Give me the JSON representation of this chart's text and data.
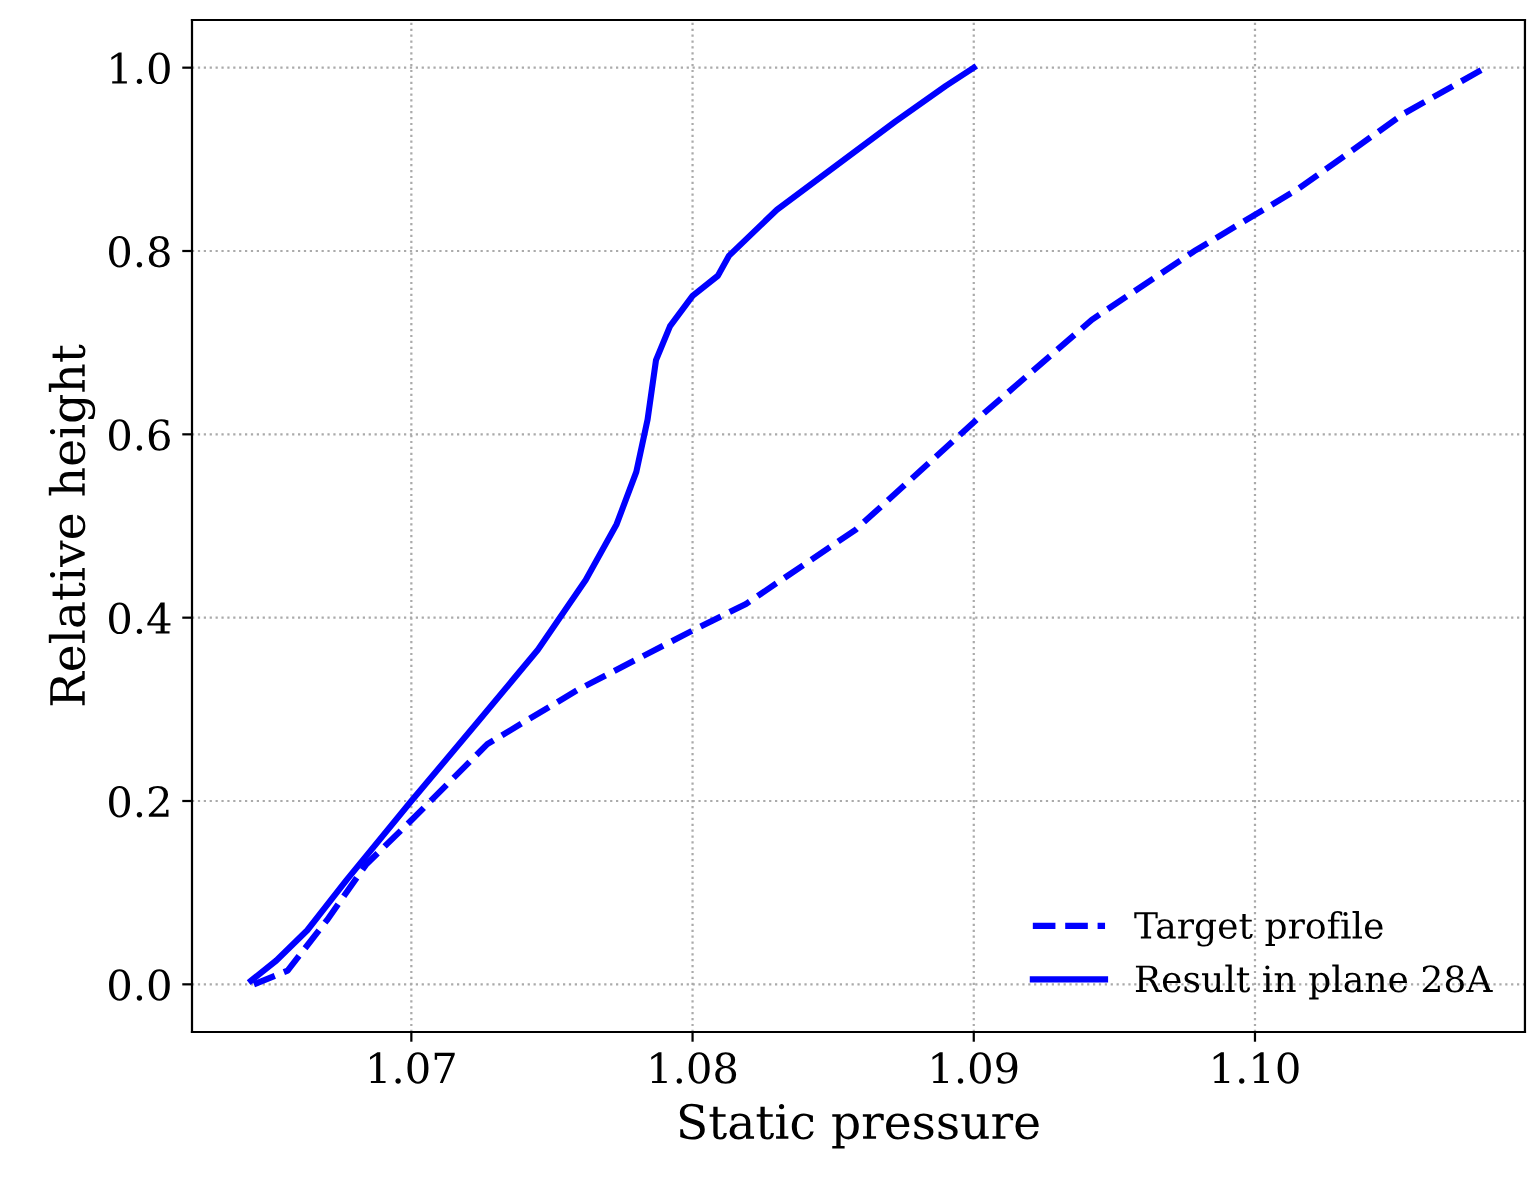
{
  "chart_data": {
    "type": "line",
    "xlabel": "Static pressure",
    "ylabel": "Relative height",
    "xlim": [
      1.0622,
      1.1096
    ],
    "ylim": [
      -0.052,
      1.052
    ],
    "xticks": [
      1.07,
      1.08,
      1.09,
      {
        "value": 1.1,
        "label": "1.10"
      }
    ],
    "yticks": [
      {
        "value": 0,
        "label": "0.0"
      },
      0.2,
      0.4,
      0.6,
      0.8,
      {
        "value": 1,
        "label": "1.0"
      }
    ],
    "grid": true,
    "legend": "bottom right",
    "marker": "none",
    "series": [
      {
        "name": "Target profile",
        "color": "#0000ff",
        "line_style": "dashed",
        "x": [
          1.0644,
          1.0656,
          1.067,
          1.0684,
          1.07,
          1.0727,
          1.0759,
          1.08,
          1.0819,
          1.0858,
          1.0901,
          1.0942,
          1.0979,
          1.1015,
          1.1053,
          1.1082
        ],
        "values": [
          0.0,
          0.015,
          0.07,
          0.131,
          0.179,
          0.262,
          0.321,
          0.386,
          0.415,
          0.496,
          0.616,
          0.725,
          0.801,
          0.867,
          0.95,
          1.0
        ]
      },
      {
        "name": "Result in plane 28A",
        "color": "#0000ff",
        "line_style": "solid",
        "x": [
          1.0643,
          1.0652,
          1.0663,
          1.0677,
          1.07,
          1.0723,
          1.0745,
          1.0762,
          1.0773,
          1.078,
          1.0784,
          1.0787,
          1.0792,
          1.08,
          1.0809,
          1.0813,
          1.083,
          1.0851,
          1.0872,
          1.089,
          1.09
        ],
        "values": [
          0.004,
          0.026,
          0.059,
          0.114,
          0.2,
          0.284,
          0.365,
          0.441,
          0.502,
          0.559,
          0.616,
          0.681,
          0.718,
          0.751,
          0.773,
          0.795,
          0.845,
          0.893,
          0.941,
          0.98,
          1.0
        ]
      }
    ]
  }
}
